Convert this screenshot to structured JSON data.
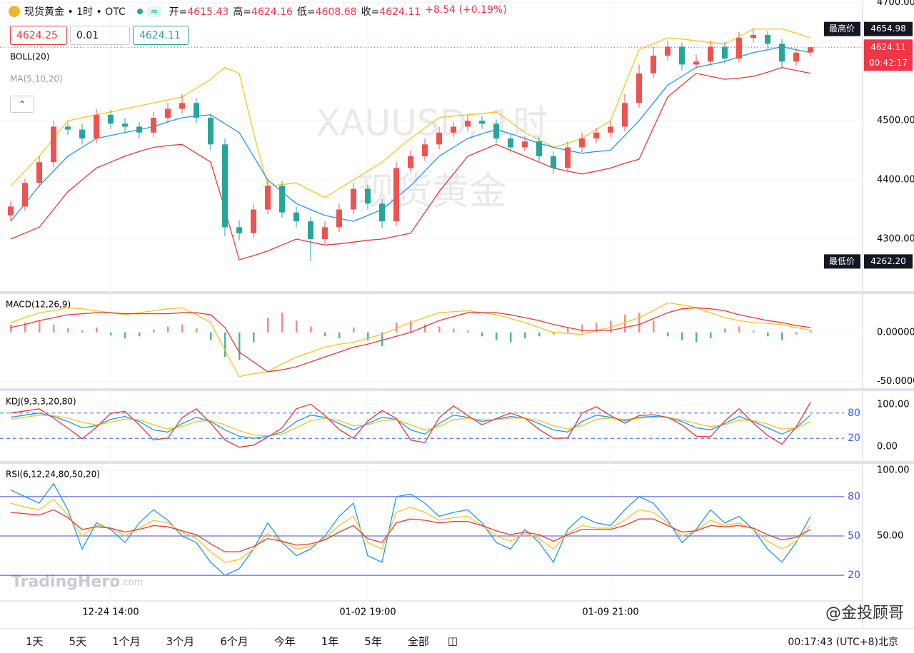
{
  "header": {
    "symbol": "现货黄金 • 1时 • OTC",
    "badge": "≈",
    "stats": [
      {
        "label": "开=",
        "value": "4615.43"
      },
      {
        "label": "高=",
        "value": "4624.16"
      },
      {
        "label": "低=",
        "value": "4608.68"
      },
      {
        "label": "收=",
        "value": "4624.11"
      },
      {
        "label": "",
        "value": "+8.54 (+0.19%)"
      }
    ],
    "sell": "4624.25",
    "quantity": "0.01",
    "buy": "4624.11"
  },
  "watermarks": {
    "symbol": "XAUUSD, 1时",
    "name": "现货黄金",
    "brand": "TradingHero",
    "brand_suffix": ".com",
    "author": "@金投顾哥"
  },
  "toolbar": {
    "ranges": [
      "1天",
      "5天",
      "1个月",
      "3个月",
      "6个月",
      "今年",
      "1年",
      "5年",
      "全部"
    ],
    "clock": "00:17:43 (UTC+8)北京"
  },
  "chart_data": [
    {
      "type": "candlestick",
      "indicator": "BOLL(20)",
      "ma": "MA(5,10,20)",
      "up_color": "#ef5350",
      "down_color": "#26a69a",
      "categories": [
        null,
        null,
        null,
        null,
        null,
        null,
        null,
        "12-24 14:00",
        null,
        null,
        null,
        null,
        null,
        null,
        null,
        null,
        null,
        null,
        null,
        null,
        null,
        null,
        null,
        null,
        null,
        "01-02 19:00",
        null,
        null,
        null,
        null,
        null,
        null,
        null,
        null,
        null,
        null,
        null,
        null,
        null,
        null,
        null,
        null,
        "01-09 21:00",
        null,
        null,
        null,
        null,
        null,
        null,
        null,
        null,
        null,
        null,
        null,
        null,
        null,
        null
      ],
      "open": [
        4340,
        4355,
        4395,
        4430,
        4490,
        4485,
        4470,
        4510,
        4495,
        4490,
        4480,
        4505,
        4520,
        4530,
        4505,
        4460,
        4320,
        4310,
        4350,
        4390,
        4345,
        4330,
        4300,
        4320,
        4350,
        4385,
        4360,
        4330,
        4420,
        4440,
        4460,
        4480,
        4490,
        4500,
        4495,
        4470,
        4455,
        4465,
        4440,
        4420,
        4455,
        4470,
        4480,
        4490,
        4530,
        4580,
        4610,
        4625,
        4595,
        4600,
        4625,
        4605,
        4640,
        4645,
        4630,
        4600,
        4615.43
      ],
      "high": [
        4365,
        4402,
        4440,
        4500,
        4498,
        4495,
        4520,
        4518,
        4505,
        4498,
        4515,
        4530,
        4545,
        4538,
        4512,
        4470,
        4332,
        4360,
        4402,
        4398,
        4355,
        4338,
        4330,
        4360,
        4395,
        4392,
        4368,
        4430,
        4450,
        4470,
        4490,
        4498,
        4510,
        4508,
        4502,
        4478,
        4475,
        4472,
        4448,
        4465,
        4480,
        4488,
        4500,
        4545,
        4595,
        4625,
        4635,
        4632,
        4612,
        4636,
        4633,
        4650,
        4654.98,
        4652,
        4638,
        4622,
        4624.16
      ],
      "low": [
        4330,
        4348,
        4388,
        4422,
        4476,
        4460,
        4462,
        4486,
        4480,
        4470,
        4472,
        4496,
        4512,
        4496,
        4450,
        4305,
        4298,
        4302,
        4342,
        4336,
        4320,
        4262.2,
        4292,
        4312,
        4342,
        4350,
        4318,
        4322,
        4412,
        4432,
        4452,
        4472,
        4482,
        4486,
        4462,
        4446,
        4448,
        4432,
        4410,
        4412,
        4447,
        4462,
        4472,
        4482,
        4522,
        4572,
        4602,
        4585,
        4588,
        4592,
        4596,
        4598,
        4632,
        4622,
        4588,
        4592,
        4608.68
      ],
      "close": [
        4355,
        4395,
        4430,
        4490,
        4485,
        4470,
        4510,
        4495,
        4490,
        4480,
        4505,
        4520,
        4530,
        4505,
        4460,
        4320,
        4310,
        4350,
        4390,
        4345,
        4330,
        4300,
        4320,
        4350,
        4385,
        4360,
        4330,
        4420,
        4440,
        4460,
        4480,
        4490,
        4500,
        4495,
        4470,
        4455,
        4465,
        4440,
        4420,
        4455,
        4470,
        4480,
        4490,
        4530,
        4580,
        4610,
        4625,
        4595,
        4600,
        4625,
        4605,
        4640,
        4645,
        4630,
        4600,
        4615,
        4624.11
      ],
      "series": [
        {
          "color": "#f7c325",
          "values": [
            4390,
            4415,
            4440,
            4470,
            4500,
            4505,
            4510,
            4515,
            4520,
            4525,
            4530,
            4535,
            4540,
            4555,
            4570,
            4590,
            4580,
            4480,
            4390,
            4392,
            4395,
            4382,
            4370,
            4385,
            4400,
            4415,
            4430,
            4450,
            4470,
            4488,
            4505,
            4508,
            4510,
            4512,
            4515,
            4498,
            4480,
            4468,
            4455,
            4462,
            4470,
            4485,
            4500,
            4560,
            4620,
            4630,
            4640,
            4638,
            4635,
            4632,
            4630,
            4642,
            4655,
            4655,
            4655,
            4648,
            4640
          ]
        },
        {
          "color": "#2196f3",
          "values": [
            4330,
            4360,
            4390,
            4415,
            4440,
            4455,
            4470,
            4475,
            4480,
            4485,
            4490,
            4498,
            4505,
            4508,
            4510,
            4495,
            4480,
            4440,
            4400,
            4380,
            4360,
            4350,
            4340,
            4335,
            4330,
            4340,
            4350,
            4370,
            4390,
            4415,
            4440,
            4455,
            4470,
            4478,
            4485,
            4478,
            4470,
            4462,
            4455,
            4450,
            4445,
            4448,
            4450,
            4475,
            4500,
            4530,
            4560,
            4575,
            4590,
            4595,
            4600,
            4608,
            4615,
            4620,
            4625,
            4620,
            4615
          ]
        },
        {
          "color": "#e53935",
          "values": [
            4300,
            4310,
            4320,
            4350,
            4380,
            4400,
            4420,
            4430,
            4440,
            4448,
            4455,
            4458,
            4460,
            4445,
            4430,
            4350,
            4265,
            4272,
            4280,
            4290,
            4300,
            4295,
            4290,
            4292,
            4295,
            4298,
            4300,
            4305,
            4310,
            4345,
            4380,
            4410,
            4440,
            4450,
            4460,
            4450,
            4440,
            4430,
            4420,
            4415,
            4410,
            4415,
            4420,
            4428,
            4435,
            4488,
            4540,
            4560,
            4580,
            4575,
            4570,
            4572,
            4575,
            4582,
            4590,
            4585,
            4580
          ]
        }
      ],
      "ylim": [
        4212,
        4704
      ],
      "yticks": [
        {
          "value": 4700,
          "label": "4700.00"
        },
        {
          "value": 4500,
          "label": "4500.00"
        },
        {
          "value": 4400,
          "label": "4400.00"
        },
        {
          "value": 4300,
          "label": "4300.00"
        }
      ],
      "markers": [
        {
          "name": "最高价",
          "value": 4654.98,
          "label": "4654.98"
        },
        {
          "name": "最低价",
          "value": 4262.2,
          "label": "4262.20"
        }
      ],
      "last_price": 4624.11,
      "countdown": "00:42:17",
      "last_color": "#f23645"
    },
    {
      "type": "macd",
      "label": "MACD(12,26,9)",
      "up_color": "#f28b8b",
      "down_color": "#4db6a0",
      "values": [
        8,
        10,
        12,
        8,
        4,
        2,
        5,
        -3,
        -6,
        -4,
        3,
        6,
        8,
        4,
        -8,
        -25,
        -28,
        -10,
        15,
        20,
        12,
        6,
        -4,
        -6,
        5,
        -8,
        -14,
        10,
        12,
        8,
        6,
        4,
        2,
        -4,
        -8,
        -10,
        -6,
        -4,
        -2,
        5,
        8,
        10,
        12,
        18,
        20,
        12,
        -4,
        -8,
        -10,
        -6,
        4,
        6,
        2,
        -4,
        -8,
        -2,
        2
      ],
      "series": [
        {
          "color": "#f7c325",
          "values": [
            10,
            15,
            20,
            22,
            25,
            24,
            22,
            20,
            18,
            20,
            22,
            24,
            25,
            18,
            10,
            -18,
            -45,
            -42,
            -40,
            -32,
            -25,
            -20,
            -15,
            -12,
            -10,
            -6,
            -2,
            4,
            10,
            15,
            20,
            21,
            22,
            20,
            18,
            14,
            10,
            5,
            0,
            -1,
            -2,
            2,
            5,
            10,
            15,
            22,
            30,
            28,
            25,
            20,
            15,
            12,
            10,
            9,
            8,
            5,
            2
          ]
        },
        {
          "color": "#e53935",
          "values": [
            5,
            8,
            12,
            15,
            18,
            19,
            20,
            20,
            19,
            19,
            19,
            19,
            20,
            20,
            18,
            5,
            -20,
            -30,
            -40,
            -38,
            -35,
            -30,
            -25,
            -20,
            -15,
            -12,
            -8,
            -4,
            0,
            6,
            12,
            16,
            20,
            20,
            20,
            18,
            15,
            12,
            8,
            5,
            2,
            2,
            2,
            5,
            8,
            14,
            20,
            24,
            25,
            24,
            22,
            18,
            15,
            12,
            10,
            7,
            5
          ]
        }
      ],
      "ylim": [
        -56,
        39
      ],
      "yticks": [
        {
          "value": 0,
          "label": "0.00000"
        },
        {
          "value": -50,
          "label": "-50.00000"
        }
      ]
    },
    {
      "type": "kdj",
      "label": "KDJ(9,3,3,20,80)",
      "level_style": "dashed",
      "level_color": "#2962ff",
      "series": [
        {
          "color": "#2196f3",
          "values": [
            70,
            75,
            80,
            72,
            60,
            45,
            50,
            65,
            72,
            60,
            40,
            35,
            55,
            70,
            60,
            40,
            25,
            20,
            25,
            35,
            60,
            75,
            70,
            55,
            40,
            55,
            70,
            65,
            40,
            30,
            55,
            75,
            70,
            60,
            65,
            72,
            68,
            55,
            40,
            35,
            60,
            75,
            70,
            62,
            70,
            72,
            70,
            60,
            45,
            40,
            55,
            72,
            60,
            45,
            30,
            45,
            75
          ]
        },
        {
          "color": "#f7c325",
          "values": [
            65,
            70,
            75,
            74,
            68,
            58,
            52,
            58,
            66,
            64,
            52,
            42,
            48,
            60,
            62,
            52,
            38,
            28,
            26,
            30,
            45,
            62,
            68,
            62,
            50,
            52,
            62,
            64,
            52,
            40,
            48,
            64,
            68,
            64,
            64,
            68,
            68,
            62,
            50,
            42,
            50,
            65,
            68,
            65,
            68,
            70,
            70,
            64,
            55,
            48,
            52,
            63,
            62,
            54,
            42,
            44,
            60
          ]
        },
        {
          "color": "#e53935",
          "values": [
            80,
            85,
            90,
            68,
            44,
            19,
            46,
            79,
            84,
            52,
            16,
            21,
            69,
            90,
            56,
            16,
            -1,
            4,
            23,
            45,
            90,
            101,
            74,
            41,
            20,
            61,
            86,
            67,
            16,
            10,
            69,
            97,
            74,
            52,
            67,
            80,
            68,
            41,
            20,
            21,
            80,
            95,
            74,
            56,
            74,
            76,
            70,
            52,
            25,
            24,
            61,
            90,
            56,
            27,
            6,
            47,
            105
          ]
        }
      ],
      "ylim": [
        -32,
        132
      ],
      "yticks": [
        {
          "value": 100,
          "label": "100.00"
        },
        {
          "value": 0,
          "label": "0.00"
        }
      ],
      "levels": [
        80,
        20
      ]
    },
    {
      "type": "rsi",
      "label": "RSI(6,12,24,80,50,20)",
      "level_style": "solid",
      "level_color": "#3f51d6",
      "series": [
        {
          "color": "#2196f3",
          "values": [
            85,
            80,
            75,
            90,
            70,
            40,
            60,
            55,
            45,
            60,
            70,
            62,
            50,
            45,
            30,
            20,
            25,
            40,
            60,
            45,
            35,
            40,
            50,
            65,
            75,
            35,
            30,
            80,
            82,
            75,
            65,
            68,
            70,
            60,
            45,
            40,
            55,
            45,
            30,
            55,
            65,
            60,
            58,
            70,
            80,
            75,
            62,
            45,
            55,
            70,
            60,
            65,
            55,
            40,
            30,
            45,
            65
          ]
        },
        {
          "color": "#f7c325",
          "values": [
            75,
            72,
            70,
            78,
            66,
            50,
            58,
            56,
            50,
            56,
            62,
            60,
            53,
            48,
            38,
            30,
            32,
            40,
            52,
            46,
            40,
            42,
            48,
            58,
            65,
            45,
            40,
            68,
            72,
            68,
            62,
            64,
            65,
            58,
            50,
            46,
            52,
            48,
            40,
            52,
            58,
            56,
            56,
            62,
            70,
            68,
            60,
            50,
            54,
            62,
            58,
            60,
            55,
            46,
            40,
            46,
            58
          ]
        },
        {
          "color": "#e53935",
          "values": [
            68,
            67,
            66,
            70,
            64,
            55,
            57,
            56,
            53,
            55,
            58,
            57,
            54,
            51,
            44,
            38,
            38,
            42,
            48,
            46,
            43,
            44,
            47,
            53,
            58,
            48,
            45,
            60,
            63,
            62,
            60,
            61,
            61,
            58,
            54,
            51,
            53,
            51,
            46,
            51,
            55,
            55,
            55,
            58,
            63,
            63,
            58,
            53,
            54,
            58,
            57,
            58,
            56,
            51,
            47,
            49,
            55
          ]
        }
      ],
      "ylim": [
        0.5,
        105
      ],
      "yticks": [
        {
          "value": 100,
          "label": "100.00"
        },
        {
          "value": 50,
          "label": "50.00"
        }
      ],
      "levels": [
        80,
        50,
        20
      ]
    }
  ]
}
